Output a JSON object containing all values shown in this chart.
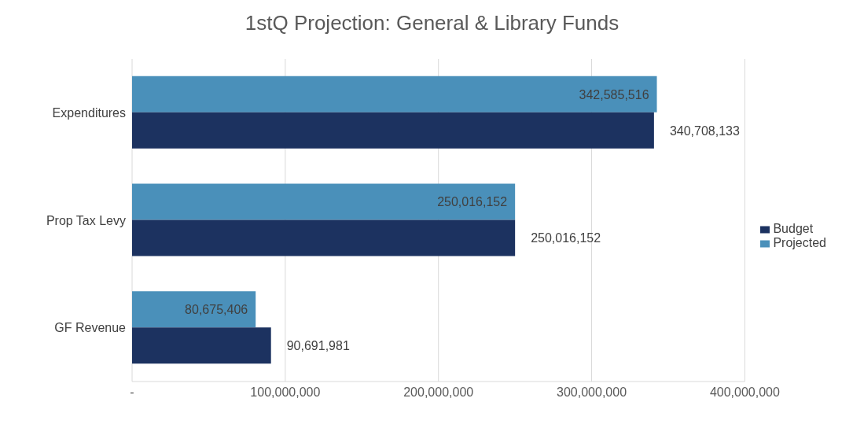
{
  "chart_data": {
    "type": "bar",
    "orientation": "horizontal",
    "title": "1stQ Projection: General & Library Funds",
    "categories": [
      "Expenditures",
      "Prop Tax Levy",
      "GF Revenue"
    ],
    "series": [
      {
        "name": "Projected",
        "color": "#4a90ba",
        "values": [
          342585516,
          250016152,
          80675406
        ],
        "value_labels": [
          "342,585,516",
          "250,016,152",
          "80,675,406"
        ]
      },
      {
        "name": "Budget",
        "color": "#1c3260",
        "values": [
          340708133,
          250016152,
          90691981
        ],
        "value_labels": [
          "340,708,133",
          "250,016,152",
          "90,691,981"
        ]
      }
    ],
    "xlim": [
      0,
      400000000
    ],
    "xticks": [
      {
        "value": 0,
        "label": "-"
      },
      {
        "value": 100000000,
        "label": "100,000,000"
      },
      {
        "value": 200000000,
        "label": "200,000,000"
      },
      {
        "value": 300000000,
        "label": "300,000,000"
      },
      {
        "value": 400000000,
        "label": "400,000,000"
      }
    ],
    "grid": "x",
    "legend": "right"
  }
}
